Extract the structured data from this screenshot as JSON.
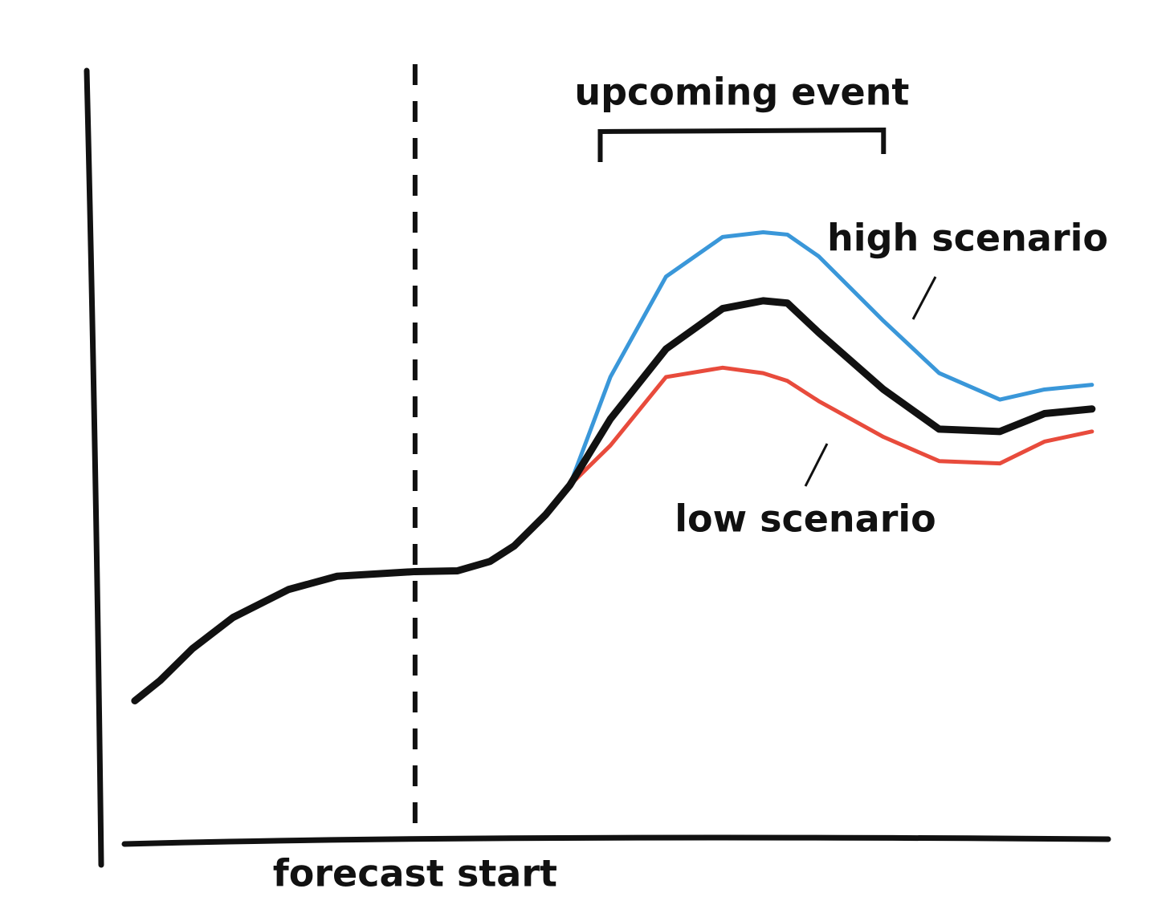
{
  "chart_data": {
    "type": "line",
    "x": [
      3.8,
      6.3,
      9.5,
      13.5,
      19.0,
      23.8,
      31.5,
      35.7,
      38.9,
      41.3,
      44.4,
      46.8,
      50.8,
      56.3,
      61.9,
      65.9,
      68.3,
      71.4,
      77.8,
      83.3,
      89.3,
      93.7,
      98.4
    ],
    "xlim": [
      0,
      100
    ],
    "ylim": [
      0,
      100
    ],
    "series": [
      {
        "color": "#111111",
        "values": [
          18.2,
          20.8,
          24.9,
          28.9,
          32.5,
          34.2,
          34.8,
          34.9,
          36.1,
          38.1,
          42.1,
          45.9,
          54.4,
          63.4,
          68.6,
          69.6,
          69.3,
          65.5,
          58.2,
          53.1,
          52.8,
          55.1,
          55.7
        ]
      },
      {
        "name": "high scenario",
        "color": "#3a97d9",
        "values": [
          null,
          null,
          null,
          null,
          null,
          null,
          null,
          null,
          null,
          null,
          null,
          45.9,
          59.8,
          72.7,
          77.8,
          78.4,
          78.1,
          75.3,
          67.0,
          60.3,
          56.9,
          58.2,
          58.8
        ]
      },
      {
        "name": "low scenario",
        "color": "#e84b3c",
        "values": [
          null,
          null,
          null,
          null,
          null,
          null,
          null,
          null,
          null,
          null,
          null,
          45.9,
          51.0,
          59.8,
          61.0,
          60.3,
          59.3,
          56.7,
          52.1,
          49.0,
          48.7,
          51.5,
          52.8
        ]
      }
    ],
    "forecast_start": {
      "label": "forecast start",
      "x": 31.5
    },
    "event": {
      "label": "upcoming event",
      "x": [
        49.8,
        77.8
      ]
    }
  }
}
